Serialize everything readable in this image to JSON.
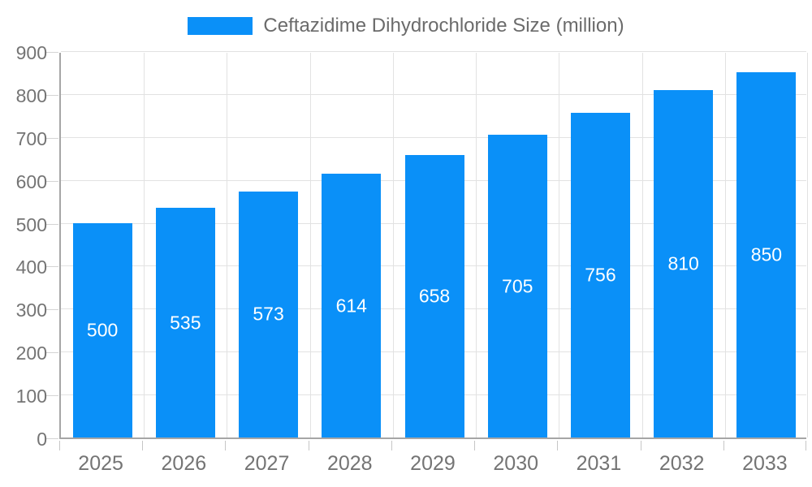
{
  "chart_data": {
    "type": "bar",
    "title": "Ceftazidime Dihydrochloride Size (million)",
    "legend": [
      "Ceftazidime Dihydrochloride Size (million)"
    ],
    "legend_position": "top-center",
    "categories": [
      "2025",
      "2026",
      "2027",
      "2028",
      "2029",
      "2030",
      "2031",
      "2032",
      "2033"
    ],
    "values": [
      500,
      535,
      573,
      614,
      658,
      705,
      756,
      810,
      850
    ],
    "xlabel": "",
    "ylabel": "",
    "ylim": [
      0,
      900
    ],
    "ytick_step": 100,
    "ytick_labels": [
      "0",
      "100",
      "200",
      "300",
      "400",
      "500",
      "600",
      "700",
      "800",
      "900"
    ],
    "grid": true,
    "bar_color": "#0a90f8",
    "value_label_color": "#ffffff",
    "axis_text_color": "#747474"
  }
}
